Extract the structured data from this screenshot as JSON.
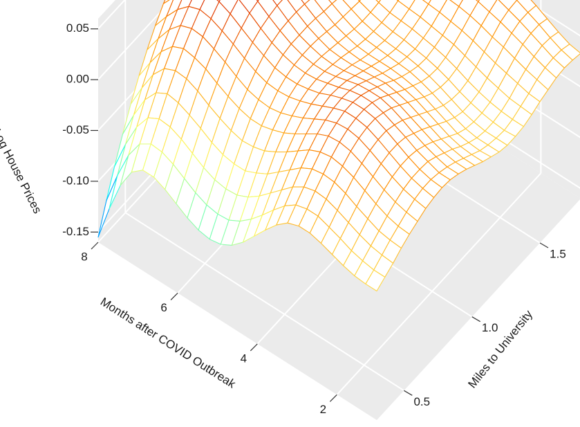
{
  "chart_data": {
    "type": "surface3d",
    "title": "",
    "xlabel": "Miles to University",
    "ylabel": "Months after COVID Outbreak",
    "zlabel": "Log House Prices",
    "x_ticks": [
      "0.5",
      "1.0",
      "1.5"
    ],
    "y_ticks": [
      "2",
      "4",
      "6",
      "8"
    ],
    "z_ticks": [
      "0.05",
      "0.00",
      "-0.05",
      "-0.10",
      "-0.15"
    ],
    "xlim": [
      0.3,
      1.8
    ],
    "ylim": [
      1,
      8
    ],
    "zlim": [
      -0.16,
      0.06
    ],
    "grid": true,
    "colormap": [
      "#0000ff",
      "#00ffff",
      "#ffff66",
      "#ff8c00",
      "#cc0000"
    ],
    "x": [
      0.3,
      0.36,
      0.42,
      0.48,
      0.54,
      0.6,
      0.66,
      0.72,
      0.78,
      0.84,
      0.9,
      0.96,
      1.02,
      1.08,
      1.14,
      1.2,
      1.26,
      1.32,
      1.38,
      1.44,
      1.5,
      1.56,
      1.62,
      1.68,
      1.74,
      1.8
    ],
    "y": [
      1,
      1.28,
      1.56,
      1.84,
      2.12,
      2.4,
      2.68,
      2.96,
      3.24,
      3.52,
      3.8,
      4.08,
      4.36,
      4.64,
      4.92,
      5.2,
      5.48,
      5.76,
      6.04,
      6.32,
      6.6,
      6.88,
      7.16,
      7.44,
      7.72,
      8
    ],
    "z": [
      [
        -0.033,
        -0.028,
        -0.023,
        -0.017,
        -0.012,
        -0.008,
        -0.004,
        -0.002,
        -0.001,
        -0.002,
        -0.005,
        -0.009,
        -0.014,
        -0.019,
        -0.023,
        -0.027,
        -0.029,
        -0.029,
        -0.028,
        -0.025,
        -0.021,
        -0.018,
        -0.015,
        -0.014,
        -0.015,
        -0.017
      ],
      [
        -0.033,
        -0.028,
        -0.022,
        -0.016,
        -0.011,
        -0.006,
        -0.002,
        0.0,
        0.0,
        -0.002,
        -0.005,
        -0.009,
        -0.014,
        -0.019,
        -0.024,
        -0.027,
        -0.029,
        -0.03,
        -0.028,
        -0.024,
        -0.02,
        -0.015,
        -0.012,
        -0.011,
        -0.012,
        -0.015
      ],
      [
        -0.032,
        -0.026,
        -0.02,
        -0.014,
        -0.008,
        -0.003,
        0.001,
        0.003,
        0.003,
        0.002,
        -0.002,
        -0.007,
        -0.012,
        -0.018,
        -0.023,
        -0.027,
        -0.029,
        -0.029,
        -0.027,
        -0.023,
        -0.017,
        -0.012,
        -0.008,
        -0.006,
        -0.007,
        -0.01
      ],
      [
        -0.029,
        -0.023,
        -0.016,
        -0.009,
        -0.003,
        0.002,
        0.006,
        0.008,
        0.008,
        0.006,
        0.002,
        -0.003,
        -0.009,
        -0.015,
        -0.021,
        -0.025,
        -0.027,
        -0.027,
        -0.025,
        -0.02,
        -0.014,
        -0.008,
        -0.003,
        -0.001,
        -0.001,
        -0.004
      ],
      [
        -0.025,
        -0.018,
        -0.011,
        -0.004,
        0.003,
        0.008,
        0.012,
        0.014,
        0.014,
        0.012,
        0.007,
        0.002,
        -0.004,
        -0.01,
        -0.016,
        -0.021,
        -0.024,
        -0.024,
        -0.022,
        -0.017,
        -0.011,
        -0.004,
        0.001,
        0.004,
        0.004,
        0.002
      ],
      [
        -0.021,
        -0.014,
        -0.006,
        0.002,
        0.009,
        0.014,
        0.018,
        0.02,
        0.02,
        0.017,
        0.013,
        0.007,
        0.001,
        -0.005,
        -0.011,
        -0.016,
        -0.019,
        -0.02,
        -0.018,
        -0.013,
        -0.007,
        -0.001,
        0.005,
        0.008,
        0.009,
        0.007
      ],
      [
        -0.018,
        -0.01,
        -0.002,
        0.006,
        0.013,
        0.019,
        0.023,
        0.025,
        0.025,
        0.022,
        0.018,
        0.012,
        0.006,
        0.0,
        -0.006,
        -0.011,
        -0.014,
        -0.015,
        -0.013,
        -0.009,
        -0.003,
        0.003,
        0.008,
        0.012,
        0.013,
        0.011
      ],
      [
        -0.018,
        -0.01,
        -0.001,
        0.007,
        0.015,
        0.021,
        0.025,
        0.027,
        0.027,
        0.025,
        0.021,
        0.015,
        0.009,
        0.003,
        -0.002,
        -0.007,
        -0.01,
        -0.011,
        -0.009,
        -0.005,
        0.0,
        0.006,
        0.011,
        0.015,
        0.016,
        0.014
      ],
      [
        -0.022,
        -0.013,
        -0.004,
        0.005,
        0.013,
        0.02,
        0.024,
        0.027,
        0.027,
        0.025,
        0.021,
        0.016,
        0.011,
        0.005,
        0.0,
        -0.004,
        -0.007,
        -0.008,
        -0.006,
        -0.003,
        0.002,
        0.008,
        0.013,
        0.016,
        0.017,
        0.016
      ],
      [
        -0.031,
        -0.021,
        -0.011,
        -0.001,
        0.008,
        0.015,
        0.02,
        0.023,
        0.024,
        0.023,
        0.02,
        0.015,
        0.01,
        0.005,
        0.001,
        -0.003,
        -0.005,
        -0.006,
        -0.004,
        -0.001,
        0.004,
        0.009,
        0.013,
        0.016,
        0.017,
        0.016
      ],
      [
        -0.043,
        -0.032,
        -0.021,
        -0.01,
        0.0,
        0.008,
        0.014,
        0.018,
        0.02,
        0.019,
        0.017,
        0.013,
        0.009,
        0.005,
        0.001,
        -0.002,
        -0.004,
        -0.004,
        -0.002,
        0.001,
        0.005,
        0.01,
        0.014,
        0.016,
        0.017,
        0.016
      ],
      [
        -0.056,
        -0.044,
        -0.031,
        -0.019,
        -0.008,
        0.001,
        0.008,
        0.013,
        0.015,
        0.016,
        0.014,
        0.011,
        0.008,
        0.004,
        0.001,
        -0.001,
        -0.003,
        -0.003,
        -0.001,
        0.002,
        0.006,
        0.01,
        0.013,
        0.015,
        0.016,
        0.015
      ],
      [
        -0.069,
        -0.055,
        -0.041,
        -0.028,
        -0.015,
        -0.005,
        0.003,
        0.009,
        0.012,
        0.013,
        0.012,
        0.01,
        0.008,
        0.005,
        0.002,
        0.0,
        -0.001,
        -0.001,
        0.0,
        0.003,
        0.006,
        0.01,
        0.013,
        0.015,
        0.015,
        0.014
      ],
      [
        -0.079,
        -0.064,
        -0.049,
        -0.034,
        -0.021,
        -0.009,
        -0.001,
        0.006,
        0.01,
        0.012,
        0.012,
        0.011,
        0.009,
        0.007,
        0.005,
        0.003,
        0.002,
        0.002,
        0.003,
        0.005,
        0.008,
        0.011,
        0.014,
        0.015,
        0.015,
        0.014
      ],
      [
        -0.085,
        -0.07,
        -0.054,
        -0.039,
        -0.024,
        -0.012,
        -0.003,
        0.005,
        0.01,
        0.013,
        0.014,
        0.014,
        0.013,
        0.011,
        0.009,
        0.008,
        0.007,
        0.006,
        0.007,
        0.009,
        0.011,
        0.014,
        0.016,
        0.017,
        0.016,
        0.015
      ],
      [
        -0.087,
        -0.071,
        -0.055,
        -0.039,
        -0.025,
        -0.012,
        -0.002,
        0.006,
        0.012,
        0.016,
        0.018,
        0.018,
        0.018,
        0.017,
        0.015,
        0.014,
        0.012,
        0.012,
        0.012,
        0.013,
        0.015,
        0.017,
        0.019,
        0.019,
        0.019,
        0.017
      ],
      [
        -0.085,
        -0.069,
        -0.053,
        -0.037,
        -0.022,
        -0.009,
        0.001,
        0.01,
        0.017,
        0.021,
        0.024,
        0.025,
        0.025,
        0.024,
        0.022,
        0.02,
        0.019,
        0.018,
        0.018,
        0.018,
        0.02,
        0.021,
        0.023,
        0.023,
        0.022,
        0.02
      ],
      [
        -0.08,
        -0.064,
        -0.048,
        -0.032,
        -0.017,
        -0.004,
        0.007,
        0.016,
        0.023,
        0.028,
        0.031,
        0.033,
        0.033,
        0.032,
        0.03,
        0.028,
        0.026,
        0.025,
        0.024,
        0.025,
        0.025,
        0.027,
        0.028,
        0.028,
        0.026,
        0.024
      ],
      [
        -0.073,
        -0.057,
        -0.041,
        -0.025,
        -0.011,
        0.002,
        0.014,
        0.023,
        0.03,
        0.036,
        0.039,
        0.041,
        0.041,
        0.04,
        0.038,
        0.036,
        0.034,
        0.032,
        0.031,
        0.031,
        0.032,
        0.033,
        0.033,
        0.033,
        0.031,
        0.028
      ],
      [
        -0.066,
        -0.05,
        -0.034,
        -0.019,
        -0.004,
        0.009,
        0.02,
        0.029,
        0.037,
        0.043,
        0.046,
        0.048,
        0.049,
        0.048,
        0.046,
        0.043,
        0.041,
        0.039,
        0.038,
        0.037,
        0.038,
        0.038,
        0.038,
        0.037,
        0.035,
        0.032
      ],
      [
        -0.061,
        -0.045,
        -0.029,
        -0.014,
        0.001,
        0.013,
        0.025,
        0.034,
        0.042,
        0.048,
        0.052,
        0.054,
        0.054,
        0.054,
        0.052,
        0.049,
        0.047,
        0.045,
        0.043,
        0.042,
        0.042,
        0.042,
        0.042,
        0.041,
        0.039,
        0.035
      ],
      [
        -0.061,
        -0.044,
        -0.028,
        -0.012,
        0.002,
        0.015,
        0.026,
        0.036,
        0.044,
        0.05,
        0.054,
        0.056,
        0.057,
        0.057,
        0.055,
        0.053,
        0.05,
        0.048,
        0.046,
        0.045,
        0.045,
        0.045,
        0.044,
        0.043,
        0.041,
        0.037
      ],
      [
        -0.07,
        -0.051,
        -0.034,
        -0.018,
        -0.003,
        0.01,
        0.022,
        0.032,
        0.041,
        0.047,
        0.052,
        0.055,
        0.056,
        0.056,
        0.055,
        0.053,
        0.05,
        0.048,
        0.047,
        0.046,
        0.045,
        0.045,
        0.045,
        0.043,
        0.041,
        0.038
      ],
      [
        -0.09,
        -0.069,
        -0.05,
        -0.032,
        -0.016,
        -0.002,
        0.011,
        0.022,
        0.032,
        0.039,
        0.045,
        0.049,
        0.051,
        0.052,
        0.051,
        0.05,
        0.048,
        0.046,
        0.045,
        0.044,
        0.044,
        0.044,
        0.043,
        0.042,
        0.04,
        0.036
      ],
      [
        -0.12,
        -0.096,
        -0.074,
        -0.054,
        -0.036,
        -0.02,
        -0.005,
        0.008,
        0.019,
        0.028,
        0.035,
        0.04,
        0.044,
        0.045,
        0.045,
        0.044,
        0.043,
        0.041,
        0.04,
        0.04,
        0.039,
        0.039,
        0.039,
        0.038,
        0.036,
        0.032
      ],
      [
        -0.155,
        -0.128,
        -0.103,
        -0.08,
        -0.059,
        -0.04,
        -0.023,
        -0.008,
        0.005,
        0.015,
        0.024,
        0.03,
        0.034,
        0.036,
        0.037,
        0.036,
        0.035,
        0.034,
        0.034,
        0.033,
        0.033,
        0.033,
        0.033,
        0.032,
        0.03,
        0.026
      ]
    ]
  }
}
